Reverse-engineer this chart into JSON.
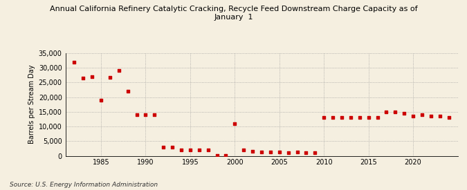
{
  "title": "Annual California Refinery Catalytic Cracking, Recycle Feed Downstream Charge Capacity as of\nJanuary  1",
  "ylabel": "Barrels per Stream Day",
  "source": "Source: U.S. Energy Information Administration",
  "background_color": "#f5efe0",
  "marker_color": "#cc0000",
  "years": [
    1982,
    1983,
    1984,
    1985,
    1986,
    1987,
    1988,
    1989,
    1990,
    1991,
    1992,
    1993,
    1994,
    1995,
    1996,
    1997,
    1998,
    1999,
    2000,
    2001,
    2002,
    2003,
    2004,
    2005,
    2006,
    2007,
    2008,
    2009,
    2010,
    2011,
    2012,
    2013,
    2014,
    2015,
    2016,
    2017,
    2018,
    2019,
    2020,
    2021,
    2022,
    2023,
    2024
  ],
  "values": [
    32000,
    26500,
    27000,
    19000,
    26800,
    29000,
    22000,
    14000,
    14000,
    14000,
    3000,
    3000,
    2000,
    2000,
    2000,
    2000,
    200,
    200,
    11000,
    2000,
    1500,
    1200,
    1200,
    1200,
    1000,
    1200,
    1000,
    1000,
    13000,
    13000,
    13000,
    13000,
    13000,
    13000,
    13000,
    15000,
    15000,
    14500,
    13500,
    14000,
    13500,
    13500,
    13000
  ],
  "ylim": [
    0,
    35000
  ],
  "yticks": [
    0,
    5000,
    10000,
    15000,
    20000,
    25000,
    30000,
    35000
  ],
  "xlim": [
    1981,
    2025
  ],
  "xticks": [
    1985,
    1990,
    1995,
    2000,
    2005,
    2010,
    2015,
    2020
  ]
}
